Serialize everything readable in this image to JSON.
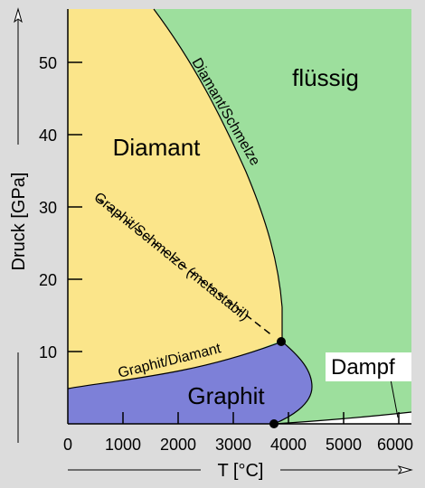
{
  "axes": {
    "x_label": "T [°C]",
    "y_label": "Druck [GPa]",
    "x_ticks": [
      "0",
      "1000",
      "2000",
      "3000",
      "4000",
      "5000",
      "6000"
    ],
    "y_ticks": [
      "10",
      "20",
      "30",
      "40",
      "50"
    ]
  },
  "regions": {
    "diamant": "Diamant",
    "fluessig": "flüssig",
    "graphit": "Graphit",
    "dampf": "Dampf"
  },
  "boundaries": {
    "diamant_schmelze": "Diamant/Schmelze",
    "graphit_schmelze_metastabil": "Graphit/Schmelze (metastabil)",
    "graphit_diamant": "Graphit/Diamant"
  },
  "colors": {
    "background": "#dcdcdc",
    "diamant": "#fbe58a",
    "fluessig": "#9ddf9d",
    "graphit": "#7d80d8",
    "dampf": "#ffffff"
  }
}
